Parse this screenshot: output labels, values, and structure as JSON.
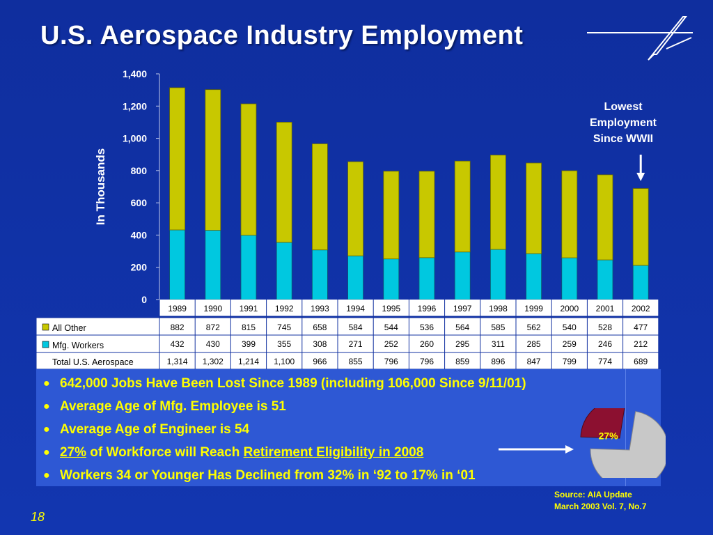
{
  "title": "U.S. Aerospace Industry Employment",
  "note": [
    "Lowest",
    "Employment",
    "Since WWII"
  ],
  "chart_data": {
    "type": "bar",
    "stacked": true,
    "categories": [
      "1989",
      "1990",
      "1991",
      "1992",
      "1993",
      "1994",
      "1995",
      "1996",
      "1997",
      "1998",
      "1999",
      "2000",
      "2001",
      "2002"
    ],
    "series": [
      {
        "name": "Mfg. Workers",
        "values": [
          432,
          430,
          399,
          355,
          308,
          271,
          252,
          260,
          295,
          311,
          285,
          259,
          246,
          212
        ],
        "color": "#00c8e0"
      },
      {
        "name": "All Other",
        "values": [
          882,
          872,
          815,
          745,
          658,
          584,
          544,
          536,
          564,
          585,
          562,
          540,
          528,
          477
        ],
        "color": "#c8c800"
      }
    ],
    "totals_label": "Total U.S. Aerospace",
    "totals": [
      "1,314",
      "1,302",
      "1,214",
      "1,100",
      "966",
      "855",
      "796",
      "796",
      "859",
      "896",
      "847",
      "799",
      "774",
      "689"
    ],
    "ylabel": "In Thousands",
    "ylim": [
      0,
      1400
    ],
    "yticks": [
      "0",
      "200",
      "400",
      "600",
      "800",
      "1,000",
      "1,200",
      "1,400"
    ],
    "legend": "data-table"
  },
  "bullets": {
    "b1": "642,000 Jobs Have Been Lost Since 1989 (including 106,000 Since 9/11/01)",
    "b2": "Average Age of Mfg. Employee is 51",
    "b3": "Average Age of Engineer is 54",
    "b4_a": "27%",
    "b4_b": " of Workforce will Reach ",
    "b4_c": "Retirement Eligibility in 2008",
    "b5": "Workers 34 or Younger Has Declined from 32% in ‘92 to 17% in ‘01"
  },
  "pie": {
    "label": "27%",
    "value": 27,
    "colors": {
      "slice": "#8c1030",
      "rest": "#c8c8c8"
    }
  },
  "source": [
    "Source:  AIA Update",
    "March 2003 Vol. 7, No.7"
  ],
  "page_number": "18",
  "colors": {
    "background": "#1030a0",
    "accent_yellow": "#ffff00",
    "panel": "#2e58d4"
  }
}
